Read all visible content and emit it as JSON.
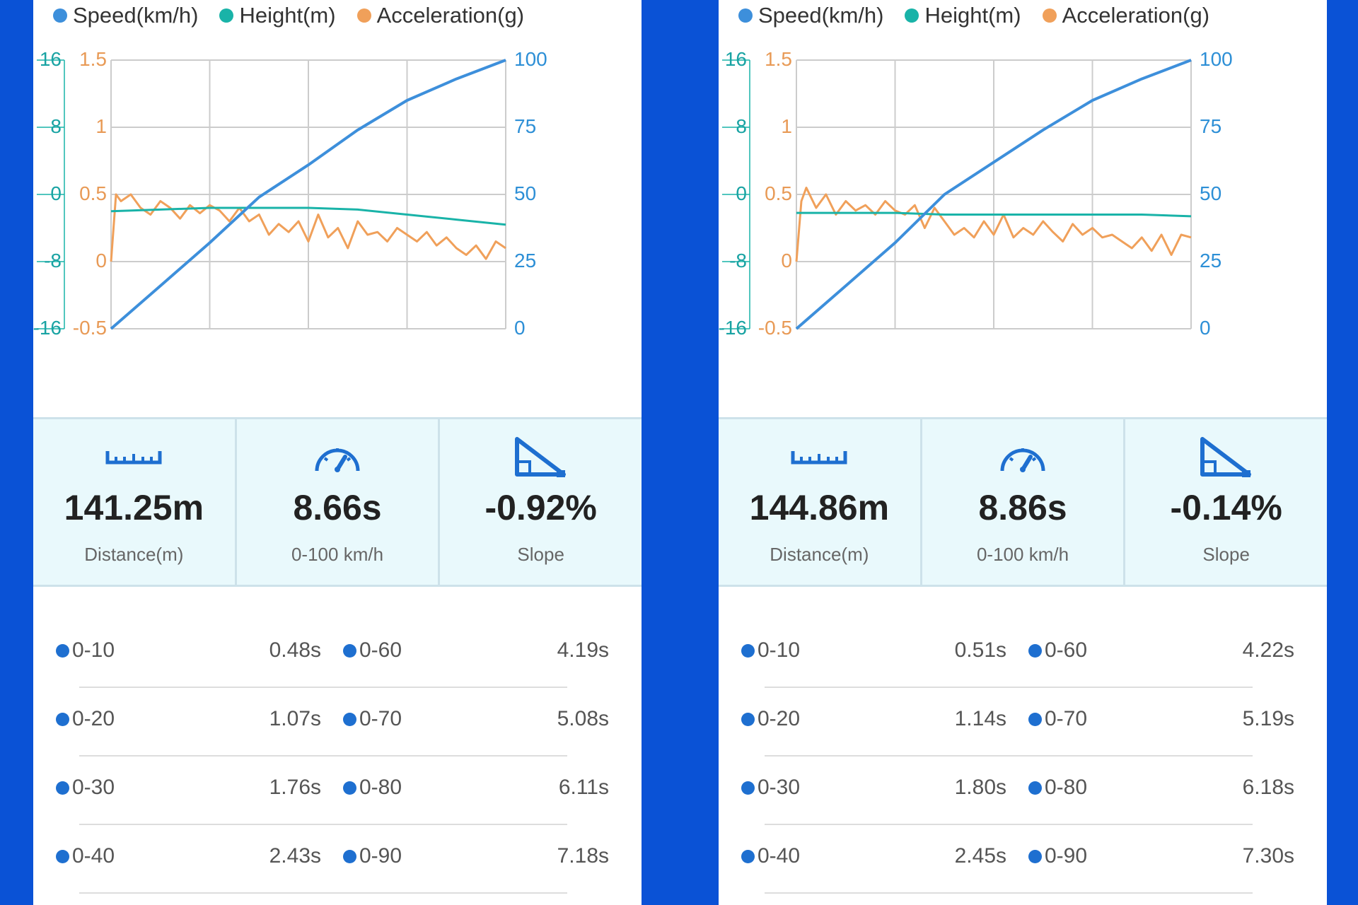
{
  "legend": [
    {
      "label": "Speed(km/h)",
      "color": "#3d8fdb"
    },
    {
      "label": "Height(m)",
      "color": "#19b3a8"
    },
    {
      "label": "Acceleration(g)",
      "color": "#f0a05a"
    }
  ],
  "axes": {
    "height_ticks": [
      "16",
      "8",
      "0",
      "-8",
      "-16"
    ],
    "accel_ticks": [
      "1.5",
      "1",
      "0.5",
      "0",
      "-0.5"
    ],
    "speed_ticks": [
      "100",
      "75",
      "50",
      "25",
      "0"
    ]
  },
  "stat_labels": {
    "distance": "Distance(m)",
    "time": "0-100 km/h",
    "slope": "Slope"
  },
  "panels": [
    {
      "stats": {
        "distance": "141.25m",
        "time": "8.66s",
        "slope": "-0.92%"
      },
      "splits": [
        {
          "left_label": "0-10",
          "left_time": "0.48s",
          "right_label": "0-60",
          "right_time": "4.19s"
        },
        {
          "left_label": "0-20",
          "left_time": "1.07s",
          "right_label": "0-70",
          "right_time": "5.08s"
        },
        {
          "left_label": "0-30",
          "left_time": "1.76s",
          "right_label": "0-80",
          "right_time": "6.11s"
        },
        {
          "left_label": "0-40",
          "left_time": "2.43s",
          "right_label": "0-90",
          "right_time": "7.18s"
        }
      ]
    },
    {
      "stats": {
        "distance": "144.86m",
        "time": "8.86s",
        "slope": "-0.14%"
      },
      "splits": [
        {
          "left_label": "0-10",
          "left_time": "0.51s",
          "right_label": "0-60",
          "right_time": "4.22s"
        },
        {
          "left_label": "0-20",
          "left_time": "1.14s",
          "right_label": "0-70",
          "right_time": "5.19s"
        },
        {
          "left_label": "0-30",
          "left_time": "1.80s",
          "right_label": "0-80",
          "right_time": "6.18s"
        },
        {
          "left_label": "0-40",
          "left_time": "2.45s",
          "right_label": "0-90",
          "right_time": "7.30s"
        }
      ]
    }
  ],
  "chart_data": [
    {
      "type": "line",
      "xlim": [
        0,
        4
      ],
      "y_axes": {
        "height": {
          "ylim": [
            -16,
            16
          ]
        },
        "acceleration": {
          "ylim": [
            -0.5,
            1.5
          ]
        },
        "speed": {
          "ylim": [
            0,
            100
          ]
        }
      },
      "grid": true,
      "legend": "top",
      "series": [
        {
          "name": "Speed(km/h)",
          "axis": "speed",
          "color": "#3d8fdb",
          "x": [
            0,
            0.5,
            1.0,
            1.5,
            2.0,
            2.5,
            3.0,
            3.5,
            4.0
          ],
          "y": [
            0,
            16,
            32,
            49,
            61,
            74,
            85,
            93,
            100
          ]
        },
        {
          "name": "Height(m)",
          "axis": "height",
          "color": "#19b3a8",
          "x": [
            0,
            0.5,
            1.0,
            1.5,
            2.0,
            2.5,
            3.0,
            3.5,
            4.0
          ],
          "y": [
            -2,
            -1.8,
            -1.6,
            -1.6,
            -1.6,
            -1.8,
            -2.4,
            -3.0,
            -3.6
          ]
        },
        {
          "name": "Acceleration(g)",
          "axis": "acceleration",
          "color": "#f0a05a",
          "x": [
            0,
            0.05,
            0.1,
            0.2,
            0.3,
            0.4,
            0.5,
            0.6,
            0.7,
            0.8,
            0.9,
            1.0,
            1.1,
            1.2,
            1.3,
            1.4,
            1.5,
            1.6,
            1.7,
            1.8,
            1.9,
            2.0,
            2.1,
            2.2,
            2.3,
            2.4,
            2.5,
            2.6,
            2.7,
            2.8,
            2.9,
            3.0,
            3.1,
            3.2,
            3.3,
            3.4,
            3.5,
            3.6,
            3.7,
            3.8,
            3.9,
            4.0
          ],
          "y": [
            0,
            0.5,
            0.45,
            0.5,
            0.4,
            0.35,
            0.45,
            0.4,
            0.32,
            0.42,
            0.36,
            0.42,
            0.38,
            0.3,
            0.4,
            0.3,
            0.35,
            0.2,
            0.28,
            0.22,
            0.3,
            0.15,
            0.35,
            0.18,
            0.25,
            0.1,
            0.3,
            0.2,
            0.22,
            0.15,
            0.25,
            0.2,
            0.15,
            0.22,
            0.12,
            0.18,
            0.1,
            0.05,
            0.12,
            0.02,
            0.15,
            0.1
          ]
        }
      ]
    },
    {
      "type": "line",
      "xlim": [
        0,
        4
      ],
      "y_axes": {
        "height": {
          "ylim": [
            -16,
            16
          ]
        },
        "acceleration": {
          "ylim": [
            -0.5,
            1.5
          ]
        },
        "speed": {
          "ylim": [
            0,
            100
          ]
        }
      },
      "grid": true,
      "legend": "top",
      "series": [
        {
          "name": "Speed(km/h)",
          "axis": "speed",
          "color": "#3d8fdb",
          "x": [
            0,
            0.5,
            1.0,
            1.5,
            2.0,
            2.5,
            3.0,
            3.5,
            4.0
          ],
          "y": [
            0,
            16,
            32,
            50,
            62,
            74,
            85,
            93,
            100
          ]
        },
        {
          "name": "Height(m)",
          "axis": "height",
          "color": "#19b3a8",
          "x": [
            0,
            0.5,
            1.0,
            1.5,
            2.0,
            2.5,
            3.0,
            3.5,
            4.0
          ],
          "y": [
            -2.2,
            -2.2,
            -2.2,
            -2.4,
            -2.4,
            -2.4,
            -2.4,
            -2.4,
            -2.6
          ]
        },
        {
          "name": "Acceleration(g)",
          "axis": "acceleration",
          "color": "#f0a05a",
          "x": [
            0,
            0.05,
            0.1,
            0.2,
            0.3,
            0.4,
            0.5,
            0.6,
            0.7,
            0.8,
            0.9,
            1.0,
            1.1,
            1.2,
            1.3,
            1.4,
            1.5,
            1.6,
            1.7,
            1.8,
            1.9,
            2.0,
            2.1,
            2.2,
            2.3,
            2.4,
            2.5,
            2.6,
            2.7,
            2.8,
            2.9,
            3.0,
            3.1,
            3.2,
            3.3,
            3.4,
            3.5,
            3.6,
            3.7,
            3.8,
            3.9,
            4.0
          ],
          "y": [
            0,
            0.45,
            0.55,
            0.4,
            0.5,
            0.35,
            0.45,
            0.38,
            0.42,
            0.35,
            0.45,
            0.38,
            0.35,
            0.42,
            0.25,
            0.4,
            0.3,
            0.2,
            0.25,
            0.18,
            0.3,
            0.2,
            0.35,
            0.18,
            0.25,
            0.2,
            0.3,
            0.22,
            0.15,
            0.28,
            0.2,
            0.25,
            0.18,
            0.2,
            0.15,
            0.1,
            0.18,
            0.08,
            0.2,
            0.05,
            0.2,
            0.18
          ]
        }
      ]
    }
  ]
}
